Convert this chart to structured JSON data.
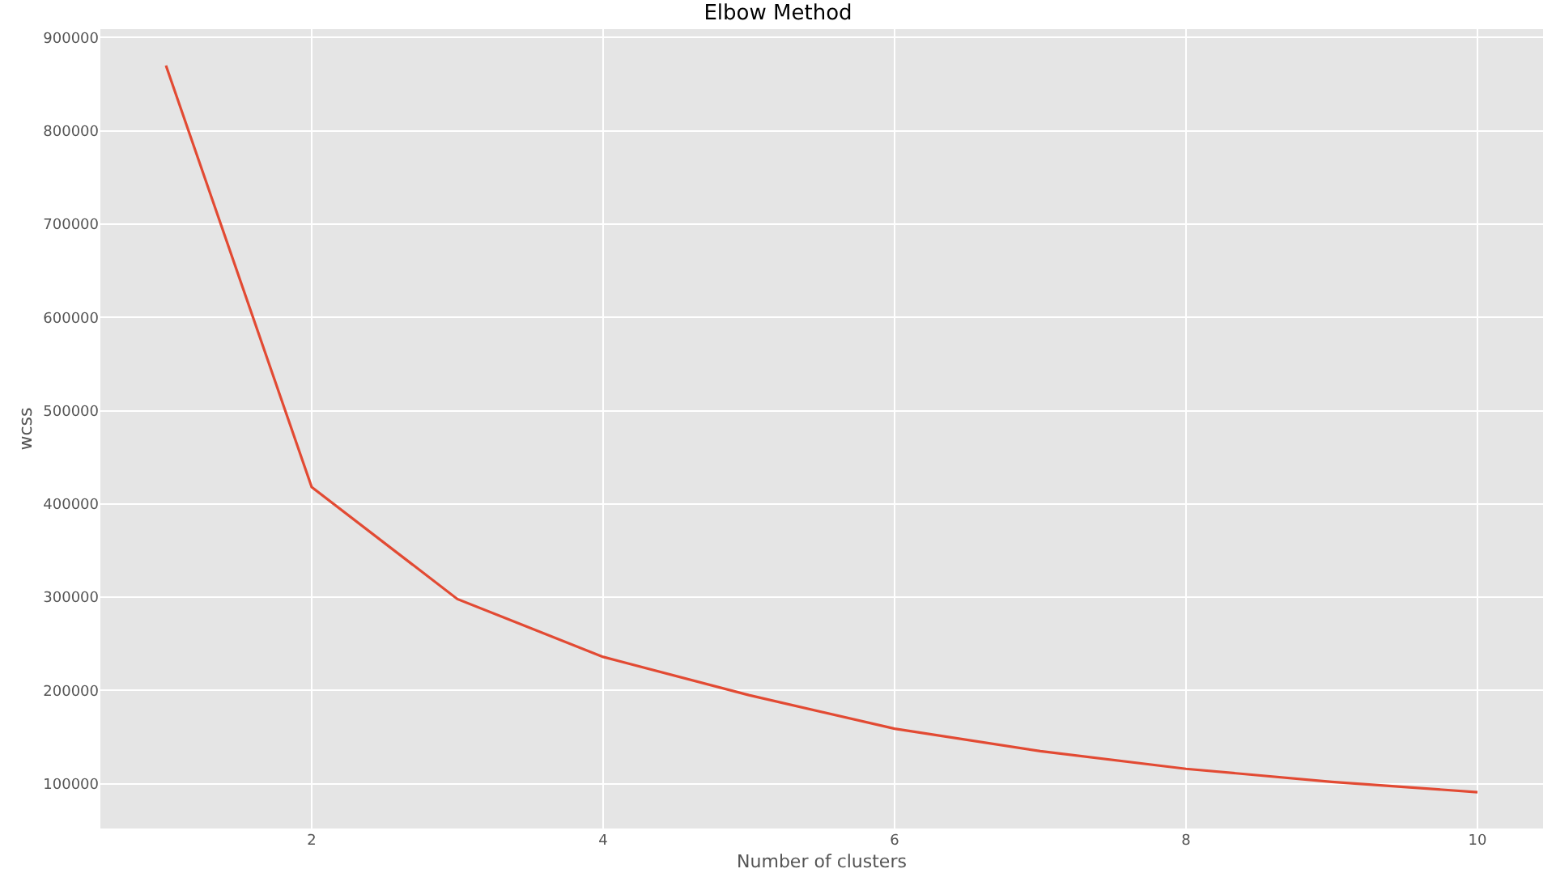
{
  "chart_data": {
    "type": "line",
    "title": "Elbow Method",
    "xlabel": "Number of clusters",
    "ylabel": "wcss",
    "x": [
      1,
      2,
      3,
      4,
      5,
      6,
      7,
      8,
      9,
      10
    ],
    "series": [
      {
        "color": "#e24a33",
        "values": [
          870000,
          418000,
          298000,
          236000,
          195000,
          159000,
          135000,
          116000,
          102000,
          91000
        ]
      }
    ],
    "xlim": [
      0.55,
      10.45
    ],
    "xticks": [
      2,
      4,
      6,
      8,
      10
    ],
    "ylim": [
      52000,
      909000
    ],
    "yticks": [
      100000,
      200000,
      300000,
      400000,
      500000,
      600000,
      700000,
      800000,
      900000
    ],
    "grid": true,
    "marker": "none",
    "line_style": "solid"
  }
}
